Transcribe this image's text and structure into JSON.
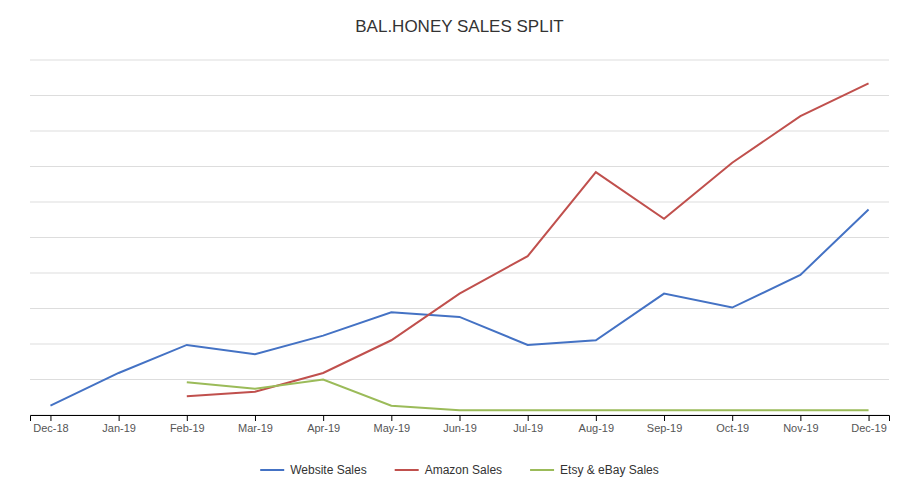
{
  "chart_data": {
    "type": "line",
    "title": "BAL.HONEY SALES SPLIT",
    "categories": [
      "Dec-18",
      "Jan-19",
      "Feb-19",
      "Mar-19",
      "Apr-19",
      "May-19",
      "Jun-19",
      "Jul-19",
      "Aug-19",
      "Sep-19",
      "Oct-19",
      "Nov-19",
      "Dec-19"
    ],
    "series": [
      {
        "name": "Website Sales",
        "color": "#4472C4",
        "values": [
          1.0,
          4.5,
          7.5,
          6.5,
          8.5,
          11.0,
          10.5,
          7.5,
          8.0,
          13.0,
          11.5,
          15.0,
          22.0
        ]
      },
      {
        "name": "Amazon Sales",
        "color": "#C0504D",
        "values": [
          null,
          null,
          2.0,
          2.5,
          4.5,
          8.0,
          13.0,
          17.0,
          26.0,
          21.0,
          27.0,
          32.0,
          35.5
        ]
      },
      {
        "name": "Etsy & eBay Sales",
        "color": "#9BBB59",
        "values": [
          null,
          null,
          3.5,
          2.8,
          3.8,
          1.0,
          0.5,
          0.5,
          0.5,
          0.5,
          0.5,
          0.5,
          0.5
        ]
      }
    ],
    "ylim": [
      0,
      38
    ],
    "yticks": [
      0,
      3.8,
      7.6,
      11.4,
      15.2,
      19,
      22.8,
      26.6,
      30.4,
      34.2,
      38
    ],
    "grid": true,
    "tick_labels": "x",
    "legend": "bottom"
  }
}
